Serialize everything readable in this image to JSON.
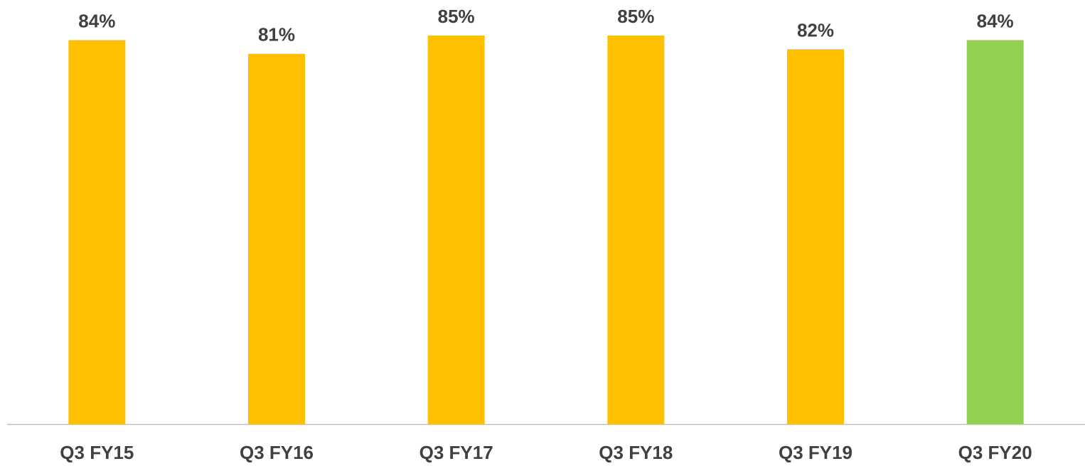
{
  "chart_data": {
    "type": "bar",
    "title": "",
    "xlabel": "",
    "ylabel": "",
    "categories": [
      "Q3 FY15",
      "Q3 FY16",
      "Q3 FY17",
      "Q3 FY18",
      "Q3 FY19",
      "Q3 FY20"
    ],
    "values": [
      84,
      81,
      85,
      85,
      82,
      84
    ],
    "data_labels": [
      "84%",
      "81%",
      "85%",
      "85%",
      "82%",
      "84%"
    ],
    "colors": [
      "#FFC000",
      "#FFC000",
      "#FFC000",
      "#FFC000",
      "#FFC000",
      "#92D050"
    ],
    "axis_color": "#BFBFBF",
    "ylim": [
      0,
      85
    ],
    "grid": false,
    "legend": "none"
  }
}
